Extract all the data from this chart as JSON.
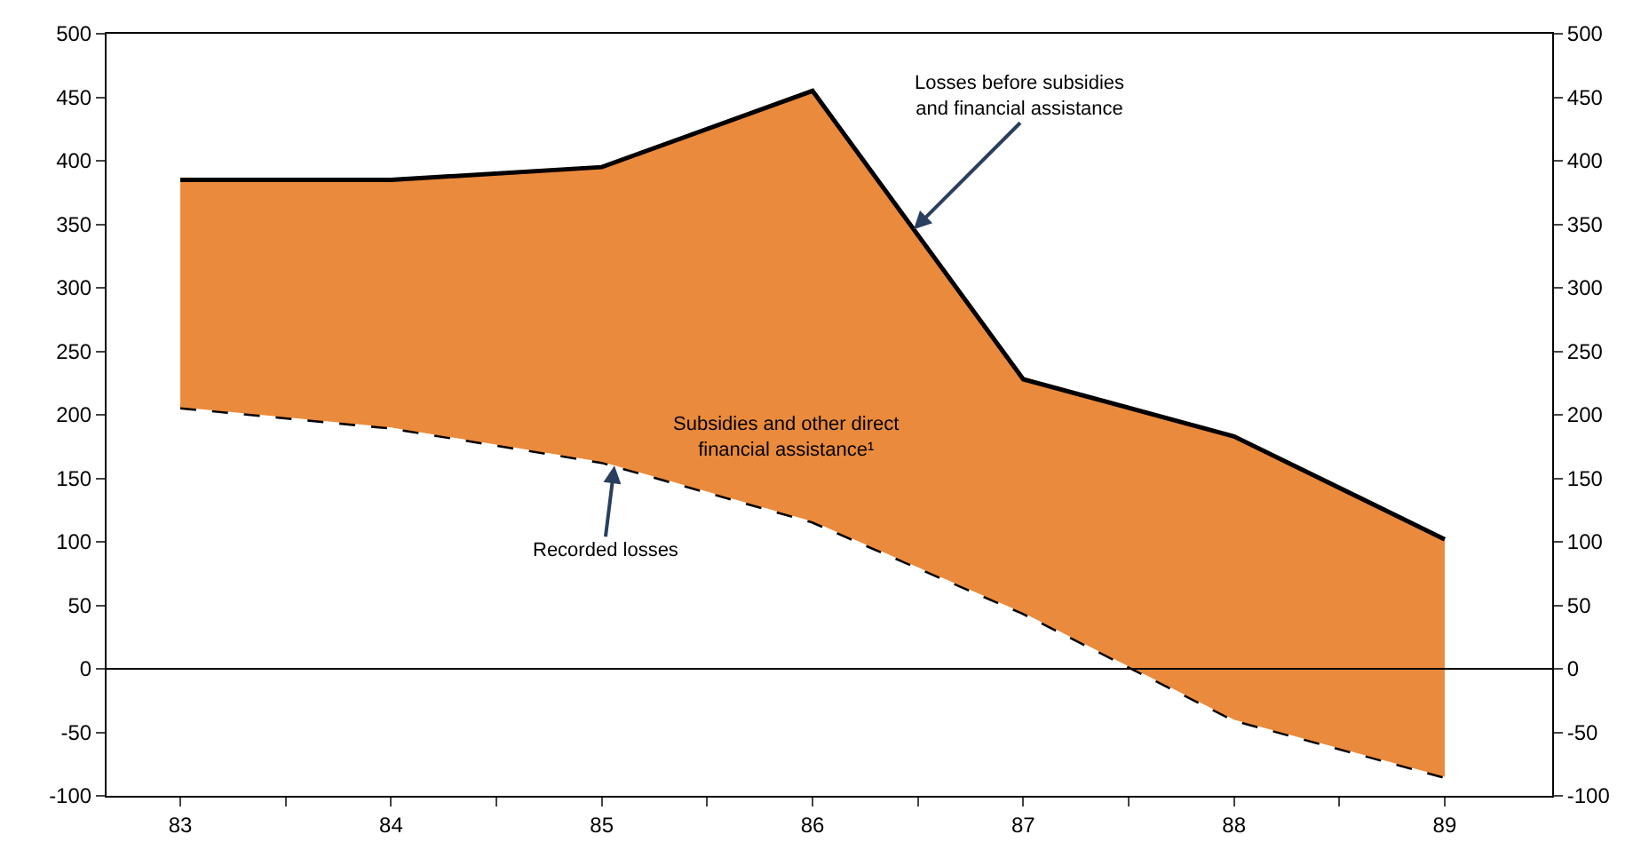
{
  "chart_data": {
    "type": "line",
    "x": [
      83,
      84,
      85,
      86,
      87,
      88,
      89
    ],
    "series": [
      {
        "color": "#000000",
        "line_style": "dashed",
        "values": [
          206,
          190,
          163,
          116,
          44,
          -40,
          -85
        ]
      },
      {
        "type": "line",
        "color": "#000000",
        "line_style": "solid",
        "values": [
          385,
          385,
          395,
          455,
          228,
          183,
          102
        ],
        "lower": [
          206,
          190,
          163,
          116,
          44,
          -40,
          -85
        ],
        "upper": [
          385,
          385,
          395,
          455,
          228,
          183,
          102
        ]
      }
    ],
    "annotations": [
      {
        "text": "Losses before subsidies\nand financial assistance",
        "x": 86.48,
        "y": 346
      },
      "Subsidies and other direct\nfinancial assistance¹",
      {
        "text": "Recorded losses",
        "x": 85.06,
        "y": 160
      }
    ],
    "ref_lines": [
      {
        "axis": "y",
        "value": 0,
        "color": "#000000"
      }
    ],
    "xlim": [
      82.65,
      89.51
    ],
    "xticks": [
      {
        "value": 83,
        "label": "83"
      },
      {
        "value": 83.5,
        "label": null
      },
      {
        "value": 84,
        "label": "84"
      },
      {
        "value": 84.5,
        "label": null
      },
      {
        "value": 85,
        "label": "85"
      },
      {
        "value": 85.5,
        "label": null
      },
      {
        "value": 86,
        "label": "86"
      },
      {
        "value": 86.5,
        "label": null
      },
      {
        "value": 87,
        "label": "87"
      },
      {
        "value": 87.5,
        "label": null
      },
      {
        "value": 88,
        "label": "88"
      },
      {
        "value": 88.5,
        "label": null
      },
      {
        "value": 89,
        "label": "89"
      }
    ],
    "ylim": [
      -100,
      500
    ],
    "yticks": [
      -100,
      -50,
      0,
      50,
      100,
      150,
      200,
      250,
      300,
      350,
      400,
      450,
      500
    ],
    "y2lim": [
      -100,
      500
    ],
    "y2ticks": [
      -100,
      -50,
      0,
      50,
      100,
      150,
      200,
      250,
      300,
      350,
      400,
      450,
      500
    ]
  }
}
